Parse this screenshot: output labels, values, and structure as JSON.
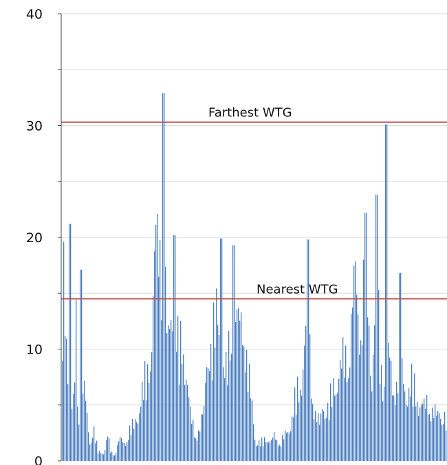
{
  "chart_data": {
    "type": "bar",
    "title": "",
    "xlabel": "",
    "ylabel": "",
    "ylim": [
      0,
      40
    ],
    "y_ticks": [
      "0",
      "10",
      "20",
      "30",
      "40"
    ],
    "y_minor_step": 5,
    "grid": true,
    "legend": "none",
    "bar_color": "#4a7dbf",
    "grid_color": "#d9d9d9",
    "reference_lines": [
      {
        "label": "Farthest WTG",
        "value": 30.3,
        "color": "#c0504d"
      },
      {
        "label": "Nearest WTG",
        "value": 14.5,
        "color": "#c0504d"
      }
    ],
    "profile": [
      [
        0,
        13
      ],
      [
        0.4,
        21
      ],
      [
        1.0,
        16
      ],
      [
        1.8,
        9
      ],
      [
        2.6,
        5
      ],
      [
        3.1,
        10
      ],
      [
        3.4,
        16
      ],
      [
        3.8,
        6
      ],
      [
        4.4,
        3
      ],
      [
        5.0,
        9
      ],
      [
        5.8,
        6
      ],
      [
        6.5,
        2
      ],
      [
        7.5,
        4
      ],
      [
        8.5,
        1
      ],
      [
        10.0,
        1
      ],
      [
        10.8,
        3
      ],
      [
        11.5,
        1
      ],
      [
        12.5,
        0.8
      ],
      [
        13.5,
        2.5
      ],
      [
        14.8,
        2
      ],
      [
        15.8,
        3.5
      ],
      [
        17.0,
        4
      ],
      [
        18.5,
        7
      ],
      [
        20.0,
        10
      ],
      [
        21.2,
        15
      ],
      [
        22.2,
        27
      ],
      [
        22.6,
        22
      ],
      [
        23.0,
        29
      ],
      [
        23.3,
        20
      ],
      [
        23.6,
        29
      ],
      [
        24.0,
        22
      ],
      [
        25.0,
        13
      ],
      [
        25.6,
        17
      ],
      [
        26.2,
        19
      ],
      [
        26.8,
        16
      ],
      [
        27.5,
        12
      ],
      [
        28.3,
        14
      ],
      [
        29.2,
        11
      ],
      [
        30.2,
        5
      ],
      [
        31.5,
        3
      ],
      [
        32.5,
        4
      ],
      [
        33.5,
        6
      ],
      [
        34.2,
        15
      ],
      [
        35.2,
        12
      ],
      [
        36.0,
        16
      ],
      [
        36.8,
        19
      ],
      [
        37.8,
        10
      ],
      [
        38.8,
        10
      ],
      [
        39.5,
        16
      ],
      [
        40.3,
        18
      ],
      [
        41.2,
        15
      ],
      [
        42.0,
        17
      ],
      [
        42.6,
        18
      ],
      [
        43.4,
        11
      ],
      [
        44.6,
        7
      ],
      [
        45.6,
        2
      ],
      [
        46.8,
        2
      ],
      [
        48.0,
        3
      ],
      [
        49.0,
        2
      ],
      [
        50.0,
        3
      ],
      [
        51.2,
        2
      ],
      [
        52.5,
        3
      ],
      [
        53.5,
        4
      ],
      [
        54.8,
        7
      ],
      [
        56.0,
        9
      ],
      [
        57.0,
        14
      ],
      [
        57.8,
        17
      ],
      [
        58.6,
        9
      ],
      [
        59.4,
        6
      ],
      [
        60.5,
        4
      ],
      [
        61.5,
        7
      ],
      [
        62.6,
        6
      ],
      [
        63.6,
        8
      ],
      [
        64.6,
        10
      ],
      [
        65.6,
        11
      ],
      [
        66.6,
        12
      ],
      [
        67.6,
        14
      ],
      [
        68.4,
        19
      ],
      [
        69.0,
        21
      ],
      [
        69.7,
        16
      ],
      [
        70.5,
        18
      ],
      [
        71.2,
        22
      ],
      [
        71.8,
        18
      ],
      [
        72.6,
        10
      ],
      [
        73.2,
        15
      ],
      [
        73.8,
        22
      ],
      [
        74.6,
        13
      ],
      [
        75.4,
        9
      ],
      [
        76.2,
        14
      ],
      [
        77.0,
        11
      ],
      [
        77.8,
        8
      ],
      [
        78.6,
        10
      ],
      [
        79.4,
        11
      ],
      [
        80.2,
        9
      ],
      [
        81.0,
        8
      ],
      [
        82.0,
        9
      ],
      [
        83.0,
        8
      ],
      [
        84.0,
        7
      ],
      [
        85.0,
        6
      ],
      [
        86.0,
        7
      ],
      [
        87.0,
        6
      ],
      [
        88.0,
        5
      ],
      [
        89.0,
        6
      ],
      [
        90.0,
        5
      ],
      [
        90.5,
        4
      ]
    ],
    "spikes": [
      {
        "position": 2.0,
        "value": 21.2
      },
      {
        "position": 4.6,
        "value": 17.1
      },
      {
        "position": 23.9,
        "value": 32.9
      },
      {
        "position": 26.3,
        "value": 20.2
      },
      {
        "position": 37.4,
        "value": 19.9
      },
      {
        "position": 40.3,
        "value": 19.3
      },
      {
        "position": 57.9,
        "value": 19.8
      },
      {
        "position": 71.3,
        "value": 22.2
      },
      {
        "position": 74.0,
        "value": 23.8
      },
      {
        "position": 76.3,
        "value": 30.1
      },
      {
        "position": 79.4,
        "value": 16.8
      }
    ]
  }
}
